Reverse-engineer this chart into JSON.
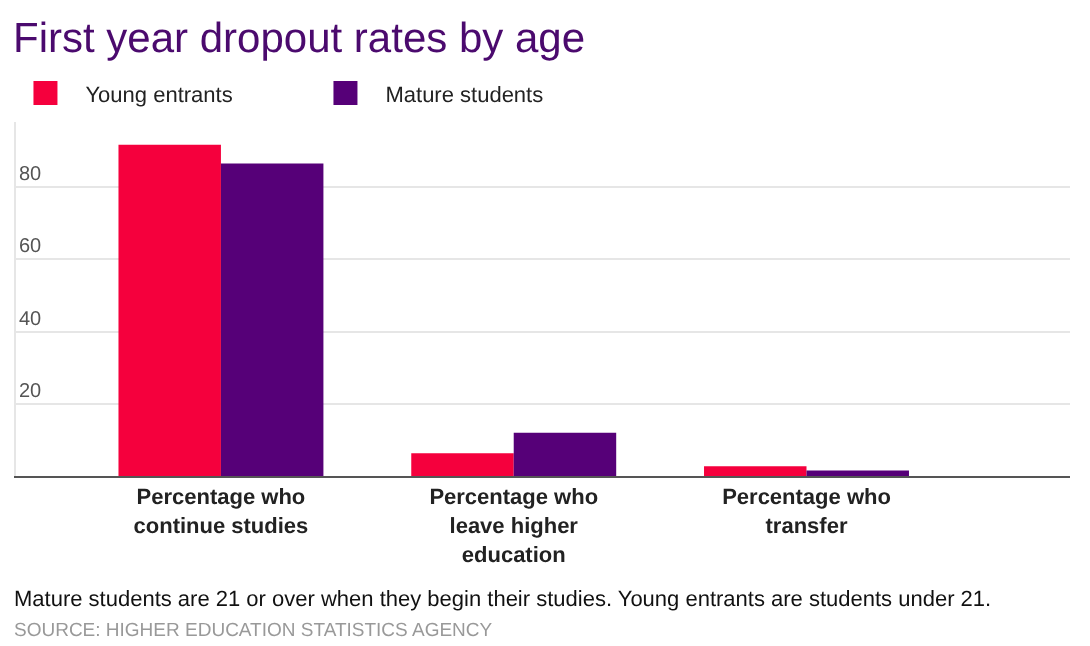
{
  "chart_data": {
    "type": "bar",
    "title": "First year dropout rates by age",
    "categories": [
      "Percentage who continue studies",
      "Percentage who leave higher education",
      "Percentage who transfer"
    ],
    "series": [
      {
        "name": "Young entrants",
        "color": "#f5003d",
        "values": [
          91.7,
          6.3,
          2.7
        ]
      },
      {
        "name": "Mature students",
        "color": "#560078",
        "values": [
          86.5,
          12,
          1.5
        ]
      }
    ],
    "ylim": [
      0,
      98
    ],
    "yticks": [
      20,
      40,
      60,
      80
    ],
    "grid": "y",
    "legend": "top left",
    "annotations": [
      "Mature students are 21 or over when they begin their studies. Young entrants are students under 21.",
      "SOURCE: HIGHER EDUCATION STATISTICS AGENCY"
    ]
  }
}
